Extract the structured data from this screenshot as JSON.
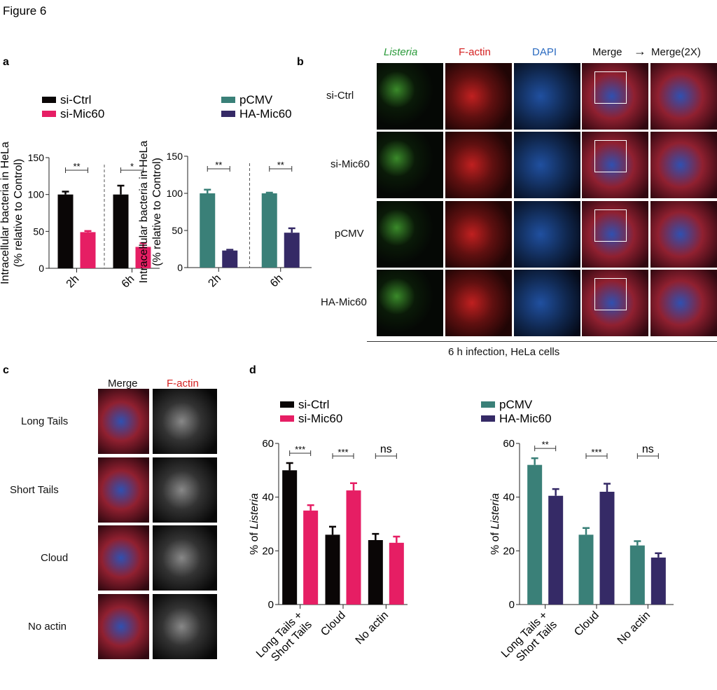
{
  "figure_title": "Figure 6",
  "panels": {
    "a": "a",
    "b": "b",
    "c": "c",
    "d": "d"
  },
  "panel_b": {
    "columns": [
      "Listeria",
      "F-actin",
      "DAPI",
      "Merge",
      "Merge(2X)"
    ],
    "arrow": "→",
    "rows": [
      "si-Ctrl",
      "si-Mic60",
      "pCMV",
      "HA-Mic60"
    ],
    "caption": "6 h infection, HeLa cells"
  },
  "panel_c": {
    "columns": [
      "Merge",
      "F-actin"
    ],
    "rows": [
      "Long Tails",
      "Short Tails",
      "Cloud",
      "No actin"
    ]
  },
  "colors": {
    "si-Ctrl": "#0a0606",
    "si-Mic60": "#e61e64",
    "pCMV": "#3a8078",
    "HA-Mic60": "#352a66",
    "listeria": "#2a9a3a",
    "factin": "#d42020",
    "dapi": "#2a6ac0"
  },
  "chart_data": [
    {
      "type": "bar",
      "ylabel": "Intracellular bacteria in HeLa (% relative to Control)",
      "ylim": [
        0,
        150
      ],
      "yticks": [
        0,
        50,
        100,
        150
      ],
      "categories": [
        "2h",
        "6h"
      ],
      "series": [
        {
          "name": "si-Ctrl",
          "values": [
            100,
            100
          ],
          "errors": [
            4,
            12
          ]
        },
        {
          "name": "si-Mic60",
          "values": [
            49,
            29
          ],
          "errors": [
            1.5,
            5
          ]
        }
      ],
      "significance": [
        "**",
        "*"
      ],
      "legend": "top"
    },
    {
      "type": "bar",
      "ylabel": "Intracellular bacteria in HeLa (% relative to Control)",
      "ylim": [
        0,
        150
      ],
      "yticks": [
        0,
        50,
        100,
        150
      ],
      "categories": [
        "2h",
        "6h"
      ],
      "series": [
        {
          "name": "pCMV",
          "values": [
            100,
            100
          ],
          "errors": [
            5,
            1
          ]
        },
        {
          "name": "HA-Mic60",
          "values": [
            23,
            47
          ],
          "errors": [
            1,
            6
          ]
        }
      ],
      "significance": [
        "**",
        "**"
      ],
      "legend": "top"
    },
    {
      "type": "bar",
      "ylabel": "% of Listeria",
      "ylim": [
        0,
        60
      ],
      "yticks": [
        0,
        20,
        40,
        60
      ],
      "categories": [
        "Long Tails + Short Tails",
        "Cloud",
        "No actin"
      ],
      "series": [
        {
          "name": "si-Ctrl",
          "values": [
            50,
            26,
            24
          ],
          "errors": [
            2.7,
            3,
            2.3
          ]
        },
        {
          "name": "si-Mic60",
          "values": [
            35,
            42.5,
            23
          ],
          "errors": [
            2,
            2.7,
            2.3
          ]
        }
      ],
      "significance": [
        "***",
        "***",
        "ns"
      ],
      "legend": "top-left"
    },
    {
      "type": "bar",
      "ylabel": "% of Listeria",
      "ylim": [
        0,
        60
      ],
      "yticks": [
        0,
        20,
        40,
        60
      ],
      "categories": [
        "Long Tails + Short Tails",
        "Cloud",
        "No actin"
      ],
      "series": [
        {
          "name": "pCMV",
          "values": [
            52,
            26,
            22
          ],
          "errors": [
            2.5,
            2.5,
            1.6
          ]
        },
        {
          "name": "HA-Mic60",
          "values": [
            40.5,
            42,
            17.5
          ],
          "errors": [
            2.5,
            3,
            1.6
          ]
        }
      ],
      "significance": [
        "**",
        "***",
        "ns"
      ],
      "legend": "top-left"
    }
  ]
}
